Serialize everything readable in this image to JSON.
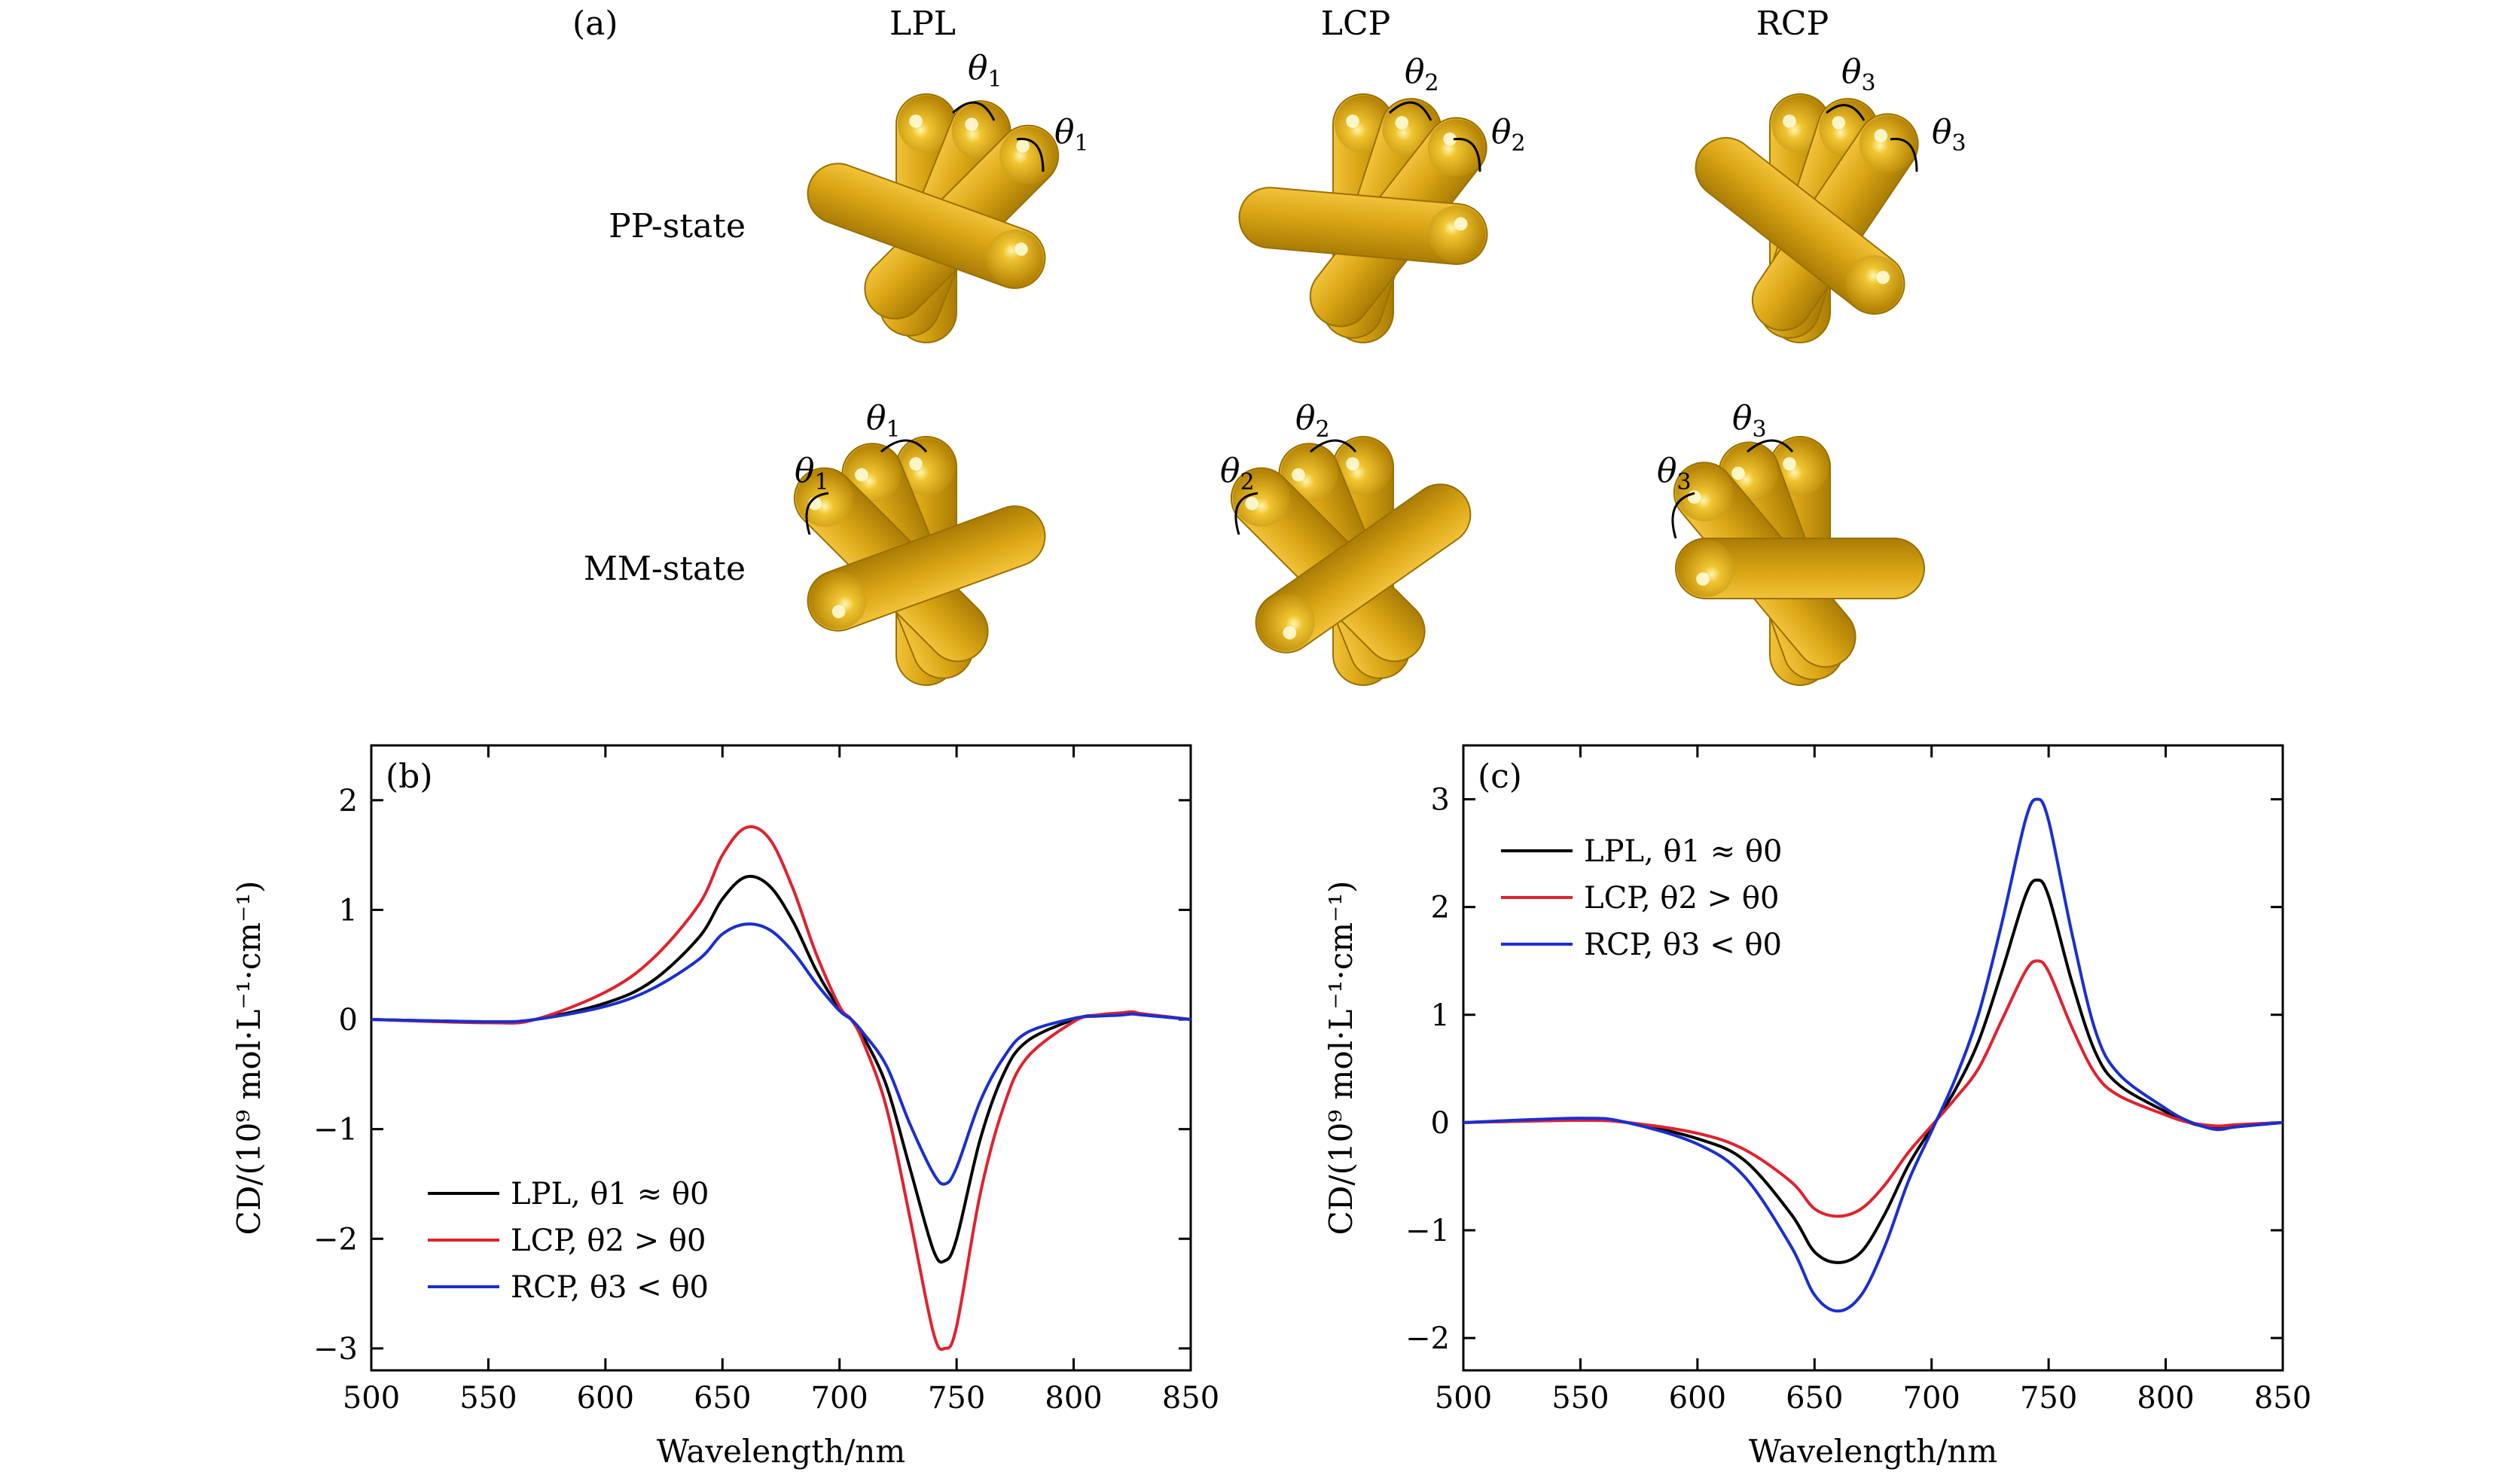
{
  "panel_a": {
    "label": "(a)",
    "columns": [
      "LPL",
      "LCP",
      "RCP"
    ],
    "rows": [
      "PP-state",
      "MM-state"
    ],
    "angles": {
      "pp": [
        [
          "θ",
          "1"
        ],
        [
          "θ",
          "1"
        ],
        [
          "θ",
          "2"
        ],
        [
          "θ",
          "2"
        ],
        [
          "θ",
          "3"
        ],
        [
          "θ",
          "3"
        ]
      ],
      "mm": [
        [
          "θ",
          "1"
        ],
        [
          "θ",
          "1"
        ],
        [
          "θ",
          "2"
        ],
        [
          "θ",
          "2"
        ],
        [
          "θ",
          "3"
        ],
        [
          "θ",
          "3"
        ]
      ]
    },
    "rod_color": "#d4a00a",
    "rod_edge": "#9a7000"
  },
  "chart_data": [
    {
      "type": "line",
      "panel_label": "(b)",
      "xlabel": "Wavelength/nm",
      "ylabel": "CD/(10⁹ mol·L⁻¹·cm⁻¹)",
      "xlim": [
        500,
        850
      ],
      "ylim": [
        -3.2,
        2.5
      ],
      "xticks": [
        500,
        550,
        600,
        650,
        700,
        750,
        800,
        850
      ],
      "yticks": [
        -3,
        -2,
        -1,
        0,
        1,
        2
      ],
      "legend_position": "bottom-left",
      "x": [
        500,
        550,
        570,
        600,
        620,
        640,
        650,
        660,
        670,
        680,
        690,
        700,
        705,
        710,
        720,
        730,
        740,
        745,
        750,
        760,
        770,
        780,
        800,
        810,
        820,
        825,
        830,
        850
      ],
      "series": [
        {
          "name": "LPL, θ1 ≈ θ0",
          "color": "#000000",
          "values": [
            0,
            -0.02,
            0,
            0.15,
            0.35,
            0.75,
            1.1,
            1.3,
            1.22,
            0.9,
            0.45,
            0.1,
            0,
            -0.15,
            -0.6,
            -1.35,
            -2.1,
            -2.2,
            -2.0,
            -1.1,
            -0.5,
            -0.2,
            0,
            0.04,
            0.05,
            0.06,
            0.05,
            0
          ]
        },
        {
          "name": "LCP, θ2 > θ0",
          "color": "#e0222e",
          "values": [
            0,
            -0.03,
            0,
            0.25,
            0.55,
            1.05,
            1.5,
            1.75,
            1.65,
            1.2,
            0.6,
            0.12,
            0,
            -0.2,
            -0.8,
            -1.8,
            -2.85,
            -3.0,
            -2.8,
            -1.6,
            -0.8,
            -0.35,
            -0.02,
            0.04,
            0.06,
            0.07,
            0.05,
            0
          ]
        },
        {
          "name": "RCP, θ3 < θ0",
          "color": "#1a2fd0",
          "values": [
            0,
            -0.02,
            0,
            0.12,
            0.28,
            0.55,
            0.78,
            0.87,
            0.82,
            0.62,
            0.33,
            0.08,
            0,
            -0.12,
            -0.42,
            -0.95,
            -1.4,
            -1.5,
            -1.35,
            -0.75,
            -0.35,
            -0.12,
            0.01,
            0.03,
            0.04,
            0.05,
            0.04,
            0
          ]
        }
      ]
    },
    {
      "type": "line",
      "panel_label": "(c)",
      "xlabel": "Wavelength/nm",
      "ylabel": "CD/(10⁹ mol·L⁻¹·cm⁻¹)",
      "xlim": [
        500,
        850
      ],
      "ylim": [
        -2.3,
        3.5
      ],
      "xticks": [
        500,
        550,
        600,
        650,
        700,
        750,
        800,
        850
      ],
      "yticks": [
        -2,
        -1,
        0,
        1,
        2,
        3
      ],
      "legend_position": "top-left",
      "x": [
        500,
        550,
        570,
        600,
        620,
        640,
        650,
        660,
        670,
        680,
        690,
        700,
        710,
        720,
        730,
        740,
        745,
        750,
        760,
        770,
        780,
        800,
        810,
        820,
        825,
        830,
        850
      ],
      "series": [
        {
          "name": "LPL, θ1 ≈ θ0",
          "color": "#000000",
          "values": [
            0,
            0.03,
            0,
            -0.15,
            -0.35,
            -0.85,
            -1.2,
            -1.3,
            -1.2,
            -0.85,
            -0.4,
            -0.05,
            0.3,
            0.75,
            1.4,
            2.1,
            2.25,
            2.1,
            1.3,
            0.65,
            0.35,
            0.1,
            0,
            -0.05,
            -0.05,
            -0.04,
            0
          ]
        },
        {
          "name": "LCP, θ2 > θ0",
          "color": "#e0222e",
          "values": [
            0,
            0.02,
            0,
            -0.1,
            -0.25,
            -0.55,
            -0.8,
            -0.87,
            -0.8,
            -0.58,
            -0.28,
            -0.03,
            0.22,
            0.5,
            0.95,
            1.4,
            1.5,
            1.4,
            0.88,
            0.45,
            0.25,
            0.07,
            0,
            -0.03,
            -0.03,
            -0.02,
            0
          ]
        },
        {
          "name": "RCP, θ3 < θ0",
          "color": "#1a2fd0",
          "values": [
            0,
            0.04,
            0,
            -0.2,
            -0.5,
            -1.15,
            -1.6,
            -1.75,
            -1.6,
            -1.15,
            -0.55,
            -0.08,
            0.4,
            1.0,
            1.85,
            2.8,
            3.0,
            2.8,
            1.75,
            0.85,
            0.45,
            0.13,
            0.01,
            -0.06,
            -0.06,
            -0.04,
            0
          ]
        }
      ]
    }
  ]
}
